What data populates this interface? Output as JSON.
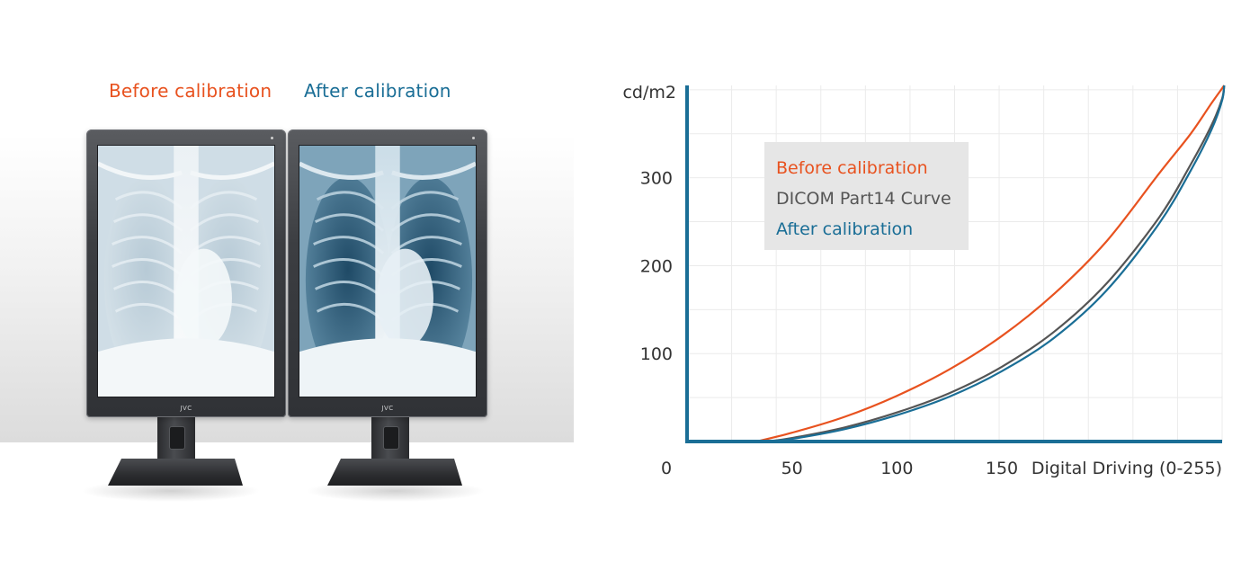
{
  "photo": {
    "caption_before": "Before calibration",
    "caption_after": "After calibration",
    "brand": "JVC",
    "colors": {
      "before": "#e8521f",
      "after": "#1a6e96"
    }
  },
  "chart_data": {
    "type": "line",
    "ylabel": "cd/m2",
    "xlabel": "Digital Driving (0-255)",
    "x_ticks": [
      0,
      50,
      100,
      150
    ],
    "x_tick_labels": [
      "0",
      "50",
      "100",
      "150"
    ],
    "y_ticks": [
      100,
      200,
      300
    ],
    "y_tick_labels": [
      "100",
      "200",
      "300"
    ],
    "xlim": [
      0,
      255
    ],
    "ylim": [
      0,
      405
    ],
    "grid": true,
    "legend_position": "top-left",
    "series": [
      {
        "name": "Before calibration",
        "color": "#e8521f",
        "x": [
          33,
          50,
          75,
          100,
          125,
          150,
          175,
          200,
          225,
          240,
          250,
          256
        ],
        "y": [
          0,
          10,
          28,
          52,
          82,
          120,
          168,
          228,
          305,
          350,
          385,
          405
        ]
      },
      {
        "name": "DICOM Part14 Curve",
        "color": "#555555",
        "x": [
          38,
          50,
          75,
          100,
          125,
          150,
          175,
          200,
          225,
          240,
          250,
          255,
          256
        ],
        "y": [
          0,
          4,
          16,
          33,
          55,
          85,
          125,
          180,
          255,
          315,
          360,
          390,
          405
        ]
      },
      {
        "name": "After calibration",
        "color": "#1a6e96",
        "x": [
          38,
          50,
          75,
          100,
          125,
          150,
          175,
          200,
          225,
          240,
          250,
          255,
          256
        ],
        "y": [
          0,
          3,
          14,
          30,
          51,
          80,
          118,
          172,
          248,
          308,
          355,
          388,
          405
        ]
      }
    ],
    "axis_color": "#1a6e96",
    "legend_background": "#e6e6e6"
  }
}
